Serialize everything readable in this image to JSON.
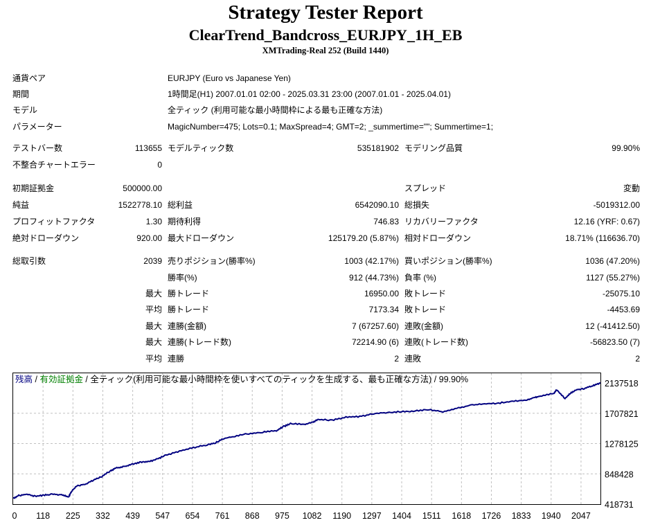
{
  "header": {
    "title": "Strategy Tester Report",
    "subtitle": "ClearTrend_Bandcross_EURJPY_1H_EB",
    "build": "XMTrading-Real 252 (Build 1440)"
  },
  "info": {
    "symbol_label": "通貨ペア",
    "symbol_value": "EURJPY (Euro vs Japanese Yen)",
    "period_label": "期間",
    "period_value": "1時間足(H1) 2007.01.01 02:00 - 2025.03.31 23:00 (2007.01.01 - 2025.04.01)",
    "model_label": "モデル",
    "model_value": "全ティック (利用可能な最小時間枠による最も正確な方法)",
    "params_label": "パラメーター",
    "params_value": "MagicNumber=475; Lots=0.1; MaxSpread=4; GMT=2; _summertime=\"\"; Summertime=1;"
  },
  "rows": [
    {
      "l1": "テストバー数",
      "v1": "113655",
      "l2": "モデルティック数",
      "v2": "535181902",
      "l3": "モデリング品質",
      "v3": "99.90%"
    },
    {
      "l1": "不整合チャートエラー",
      "v1": "0",
      "l2": "",
      "v2": "",
      "l3": "",
      "v3": ""
    },
    {
      "l1": "初期証拠金",
      "v1": "500000.00",
      "l2": "",
      "v2": "",
      "l3": "スプレッド",
      "v3": "変動"
    },
    {
      "l1": "純益",
      "v1": "1522778.10",
      "l2": "総利益",
      "v2": "6542090.10",
      "l3": "総損失",
      "v3": "-5019312.00"
    },
    {
      "l1": "プロフィットファクタ",
      "v1": "1.30",
      "l2": "期待利得",
      "v2": "746.83",
      "l3": "リカバリーファクタ",
      "v3": "12.16 (YRF: 0.67)"
    },
    {
      "l1": "絶対ドローダウン",
      "v1": "920.00",
      "l2": "最大ドローダウン",
      "v2": "125179.20 (5.87%)",
      "l3": "相対ドローダウン",
      "v3": "18.71% (116636.70)"
    },
    {
      "l1": "総取引数",
      "v1": "2039",
      "l2": "売りポジション(勝率%)",
      "v2": "1003 (42.17%)",
      "l3": "買いポジション(勝率%)",
      "v3": "1036 (47.20%)"
    },
    {
      "l1": "",
      "v1": "",
      "l2": "勝率(%)",
      "v2": "912 (44.73%)",
      "l3": "負率 (%)",
      "v3": "1127 (55.27%)"
    },
    {
      "l1": "",
      "v1": "最大",
      "l2": "勝トレード",
      "v2": "16950.00",
      "l3": "敗トレード",
      "v3": "-25075.10"
    },
    {
      "l1": "",
      "v1": "平均",
      "l2": "勝トレード",
      "v2": "7173.34",
      "l3": "敗トレード",
      "v3": "-4453.69"
    },
    {
      "l1": "",
      "v1": "最大",
      "l2": "連勝(金額)",
      "v2": "7 (67257.60)",
      "l3": "連敗(金額)",
      "v3": "12 (-41412.50)"
    },
    {
      "l1": "",
      "v1": "最大",
      "l2": "連勝(トレード数)",
      "v2": "72214.90 (6)",
      "l3": "連敗(トレード数)",
      "v3": "-56823.50 (7)"
    },
    {
      "l1": "",
      "v1": "平均",
      "l2": "連勝",
      "v2": "2",
      "l3": "連敗",
      "v3": "2"
    }
  ],
  "chart_data": {
    "type": "line",
    "legend": {
      "balance": "残高",
      "sep1": " / ",
      "equity": "有効証拠金",
      "sep2": " / ",
      "model": "全ティック(利用可能な最小時間枠を使いすべてのティックを生成する、最も正確な方法) / 99.90%"
    },
    "colors": {
      "line": "#000080",
      "balance_label": "#000080",
      "equity_label": "#008000",
      "grid": "#c0c0c0"
    },
    "x_ticks": [
      "0",
      "118",
      "225",
      "332",
      "439",
      "547",
      "654",
      "761",
      "868",
      "975",
      "1082",
      "1190",
      "1297",
      "1404",
      "1511",
      "1618",
      "1726",
      "1833",
      "1940",
      "2047"
    ],
    "y_ticks": [
      "2137518",
      "1707821",
      "1278125",
      "848428",
      "418731"
    ],
    "xlim": [
      0,
      2118
    ],
    "ylim": [
      418731,
      2137518
    ],
    "x": [
      0,
      20,
      50,
      80,
      110,
      140,
      175,
      200,
      210,
      230,
      260,
      290,
      320,
      350,
      370,
      400,
      430,
      460,
      490,
      520,
      550,
      600,
      650,
      700,
      730,
      760,
      800,
      850,
      900,
      950,
      975,
      1000,
      1050,
      1080,
      1100,
      1150,
      1200,
      1250,
      1300,
      1350,
      1400,
      1450,
      1500,
      1550,
      1600,
      1650,
      1700,
      1750,
      1800,
      1850,
      1880,
      1900,
      1950,
      1960,
      1990,
      2010,
      2030,
      2060,
      2090,
      2118
    ],
    "y": [
      503000,
      540000,
      560000,
      530000,
      545000,
      560000,
      550000,
      520000,
      600000,
      680000,
      700000,
      760000,
      810000,
      890000,
      930000,
      950000,
      985000,
      1015000,
      1020000,
      1060000,
      1110000,
      1170000,
      1220000,
      1260000,
      1290000,
      1350000,
      1380000,
      1420000,
      1440000,
      1460000,
      1520000,
      1560000,
      1550000,
      1580000,
      1620000,
      1610000,
      1650000,
      1660000,
      1700000,
      1720000,
      1730000,
      1740000,
      1760000,
      1730000,
      1780000,
      1820000,
      1840000,
      1850000,
      1880000,
      1890000,
      1930000,
      1950000,
      1990000,
      2040000,
      1920000,
      1990000,
      2040000,
      2060000,
      2100000,
      2135000
    ]
  }
}
